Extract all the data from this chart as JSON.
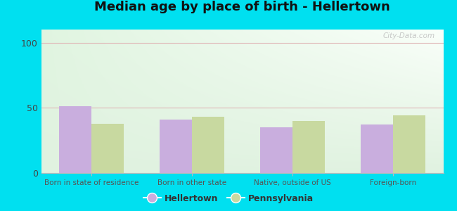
{
  "title": "Median age by place of birth - Hellertown",
  "categories": [
    "Born in state of residence",
    "Born in other state",
    "Native, outside of US",
    "Foreign-born"
  ],
  "hellertown_values": [
    51,
    41,
    35,
    37
  ],
  "pennsylvania_values": [
    38,
    43,
    40,
    44
  ],
  "hellertown_color": "#c9aede",
  "pennsylvania_color": "#c8d9a0",
  "ylim": [
    0,
    110
  ],
  "yticks": [
    0,
    50,
    100
  ],
  "background_outer": "#00e0f0",
  "title_fontsize": 13,
  "legend_labels": [
    "Hellertown",
    "Pennsylvania"
  ],
  "bar_width": 0.32,
  "grid_color": "#e0b8b8",
  "watermark": "City-Data.com"
}
